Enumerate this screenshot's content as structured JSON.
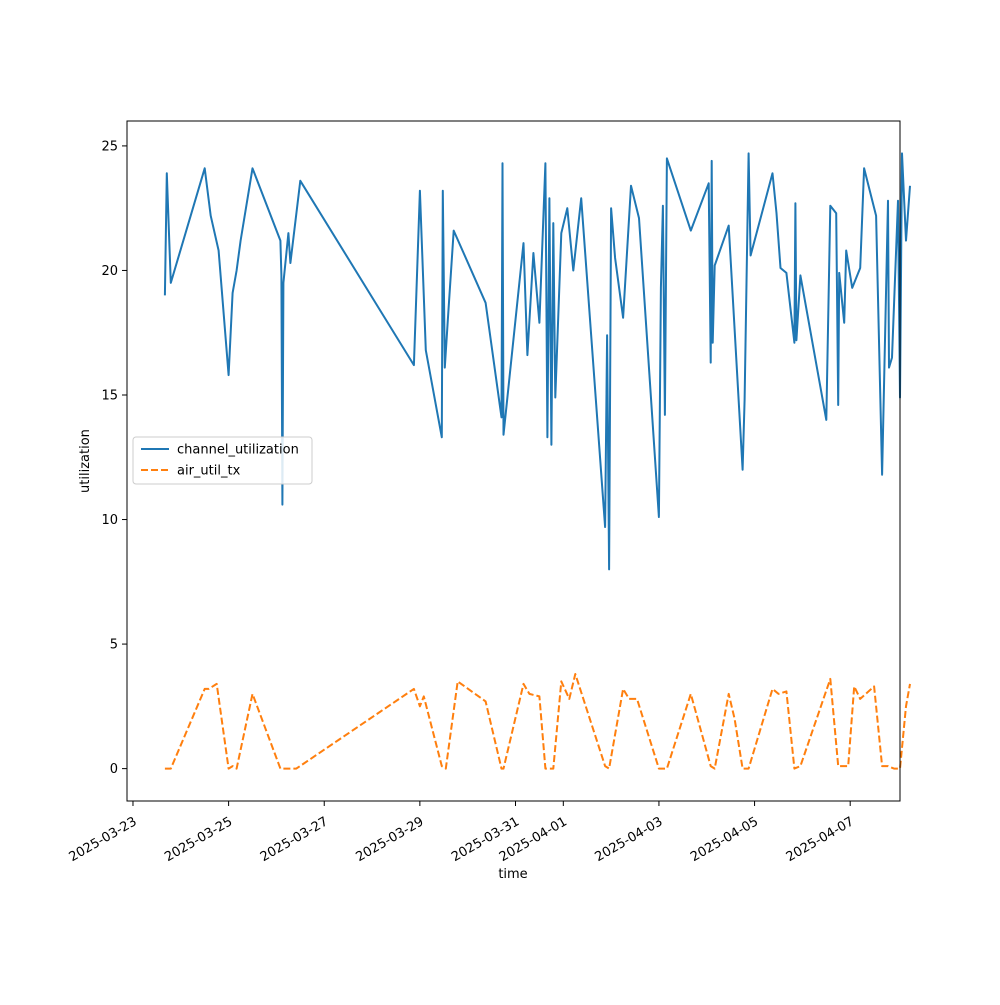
{
  "chart_data": {
    "type": "line",
    "title": "",
    "xlabel": "time",
    "ylabel": "utilization",
    "x_ticks": [
      "2025-03-23",
      "2025-03-25",
      "2025-03-27",
      "2025-03-29",
      "2025-03-31",
      "2025-04-01",
      "2025-04-03",
      "2025-04-05",
      "2025-04-07"
    ],
    "y_ticks": [
      "0",
      "5",
      "10",
      "15",
      "20",
      "25"
    ],
    "xlim": [
      "2025-03-22 21:00",
      "2025-04-08 01:00"
    ],
    "ylim": [
      -1.3,
      26.0
    ],
    "grid": false,
    "legend_position": "center-left",
    "series": [
      {
        "name": "channel_utilization",
        "color": "#1f77b4",
        "dash": "solid",
        "points": [
          [
            "2025-03-23 16:00",
            19.0
          ],
          [
            "2025-03-23 17:00",
            23.9
          ],
          [
            "2025-03-23 19:00",
            19.5
          ],
          [
            "2025-03-24 12:00",
            24.1
          ],
          [
            "2025-03-24 15:00",
            22.2
          ],
          [
            "2025-03-24 19:00",
            20.8
          ],
          [
            "2025-03-25 00:00",
            15.8
          ],
          [
            "2025-03-25 02:00",
            19.1
          ],
          [
            "2025-03-25 04:00",
            20.0
          ],
          [
            "2025-03-25 06:00",
            21.2
          ],
          [
            "2025-03-25 12:00",
            24.1
          ],
          [
            "2025-03-26 02:00",
            21.2
          ],
          [
            "2025-03-26 02:30",
            19.8
          ],
          [
            "2025-03-26 03:00",
            10.6
          ],
          [
            "2025-03-26 03:30",
            19.5
          ],
          [
            "2025-03-26 06:00",
            21.5
          ],
          [
            "2025-03-26 07:00",
            20.3
          ],
          [
            "2025-03-26 12:00",
            23.6
          ],
          [
            "2025-03-28 21:00",
            16.2
          ],
          [
            "2025-03-29 00:00",
            23.2
          ],
          [
            "2025-03-29 03:00",
            16.8
          ],
          [
            "2025-03-29 11:00",
            13.3
          ],
          [
            "2025-03-29 11:30",
            23.2
          ],
          [
            "2025-03-29 12:30",
            16.1
          ],
          [
            "2025-03-29 14:00",
            18.0
          ],
          [
            "2025-03-29 17:00",
            21.6
          ],
          [
            "2025-03-30 09:00",
            18.7
          ],
          [
            "2025-03-30 17:00",
            14.1
          ],
          [
            "2025-03-30 17:30",
            24.3
          ],
          [
            "2025-03-30 18:00",
            13.4
          ],
          [
            "2025-03-31 04:00",
            21.1
          ],
          [
            "2025-03-31 06:00",
            16.6
          ],
          [
            "2025-03-31 09:00",
            20.7
          ],
          [
            "2025-03-31 12:00",
            17.9
          ],
          [
            "2025-03-31 15:00",
            24.3
          ],
          [
            "2025-03-31 16:00",
            13.3
          ],
          [
            "2025-03-31 17:00",
            22.9
          ],
          [
            "2025-03-31 18:00",
            13.0
          ],
          [
            "2025-03-31 19:00",
            21.9
          ],
          [
            "2025-03-31 20:00",
            14.9
          ],
          [
            "2025-03-31 23:00",
            21.5
          ],
          [
            "2025-04-01 02:00",
            22.5
          ],
          [
            "2025-04-01 05:00",
            20.0
          ],
          [
            "2025-04-01 09:00",
            22.9
          ],
          [
            "2025-04-01 21:00",
            9.7
          ],
          [
            "2025-04-01 22:00",
            17.4
          ],
          [
            "2025-04-01 23:00",
            8.0
          ],
          [
            "2025-04-02 00:00",
            22.5
          ],
          [
            "2025-04-02 02:00",
            20.5
          ],
          [
            "2025-04-02 06:00",
            18.1
          ],
          [
            "2025-04-02 10:00",
            23.4
          ],
          [
            "2025-04-02 14:00",
            22.1
          ],
          [
            "2025-04-03 00:00",
            10.1
          ],
          [
            "2025-04-03 01:00",
            19.3
          ],
          [
            "2025-04-03 02:00",
            22.6
          ],
          [
            "2025-04-03 03:00",
            14.2
          ],
          [
            "2025-04-03 04:00",
            24.5
          ],
          [
            "2025-04-03 16:00",
            21.6
          ],
          [
            "2025-04-04 01:00",
            23.5
          ],
          [
            "2025-04-04 02:00",
            16.3
          ],
          [
            "2025-04-04 02:30",
            24.4
          ],
          [
            "2025-04-04 03:00",
            17.1
          ],
          [
            "2025-04-04 04:00",
            20.2
          ],
          [
            "2025-04-04 11:00",
            21.8
          ],
          [
            "2025-04-04 18:00",
            12.0
          ],
          [
            "2025-04-04 19:00",
            14.8
          ],
          [
            "2025-04-04 21:00",
            24.7
          ],
          [
            "2025-04-04 22:00",
            20.6
          ],
          [
            "2025-04-05 09:00",
            23.9
          ],
          [
            "2025-04-05 11:00",
            22.3
          ],
          [
            "2025-04-05 13:00",
            20.1
          ],
          [
            "2025-04-05 16:00",
            19.9
          ],
          [
            "2025-04-05 20:00",
            17.1
          ],
          [
            "2025-04-05 20:30",
            22.7
          ],
          [
            "2025-04-05 21:00",
            17.2
          ],
          [
            "2025-04-05 23:00",
            19.8
          ],
          [
            "2025-04-06 12:00",
            14.0
          ],
          [
            "2025-04-06 14:00",
            22.6
          ],
          [
            "2025-04-06 17:00",
            22.3
          ],
          [
            "2025-04-06 18:00",
            14.6
          ],
          [
            "2025-04-06 18:30",
            19.9
          ],
          [
            "2025-04-06 21:00",
            17.9
          ],
          [
            "2025-04-06 22:00",
            20.8
          ],
          [
            "2025-04-07 01:00",
            19.3
          ],
          [
            "2025-04-07 05:00",
            20.1
          ],
          [
            "2025-04-07 07:00",
            24.1
          ],
          [
            "2025-04-07 13:00",
            22.2
          ],
          [
            "2025-04-07 16:00",
            11.8
          ],
          [
            "2025-04-07 19:00",
            22.8
          ],
          [
            "2025-04-07 19:30",
            16.1
          ],
          [
            "2025-04-07 21:00",
            16.5
          ],
          [
            "2025-04-08 00:00",
            22.8
          ],
          [
            "2025-04-08 01:00",
            14.9
          ],
          [
            "2025-04-08 02:00",
            24.7
          ],
          [
            "2025-04-08 04:00",
            21.2
          ],
          [
            "2025-04-08 06:00",
            23.4
          ]
        ]
      },
      {
        "name": "air_util_tx",
        "color": "#ff7f0e",
        "dash": "dashed",
        "points": [
          [
            "2025-03-23 16:00",
            0.0
          ],
          [
            "2025-03-23 19:00",
            0.0
          ],
          [
            "2025-03-24 12:00",
            3.2
          ],
          [
            "2025-03-24 14:00",
            3.2
          ],
          [
            "2025-03-24 18:00",
            3.4
          ],
          [
            "2025-03-25 00:00",
            0.0
          ],
          [
            "2025-03-25 02:00",
            0.1
          ],
          [
            "2025-03-25 04:00",
            0.0
          ],
          [
            "2025-03-25 12:00",
            3.0
          ],
          [
            "2025-03-26 02:00",
            0.0
          ],
          [
            "2025-03-26 06:00",
            0.0
          ],
          [
            "2025-03-26 10:00",
            0.0
          ],
          [
            "2025-03-28 21:00",
            3.2
          ],
          [
            "2025-03-29 00:00",
            2.5
          ],
          [
            "2025-03-29 02:00",
            2.9
          ],
          [
            "2025-03-29 11:00",
            0.1
          ],
          [
            "2025-03-29 13:00",
            0.0
          ],
          [
            "2025-03-29 19:00",
            3.5
          ],
          [
            "2025-03-30 09:00",
            2.7
          ],
          [
            "2025-03-30 17:00",
            0.0
          ],
          [
            "2025-03-30 18:00",
            0.0
          ],
          [
            "2025-03-31 04:00",
            3.4
          ],
          [
            "2025-03-31 07:00",
            3.0
          ],
          [
            "2025-03-31 12:00",
            2.9
          ],
          [
            "2025-03-31 15:00",
            0.0
          ],
          [
            "2025-03-31 19:00",
            0.0
          ],
          [
            "2025-03-31 23:00",
            3.5
          ],
          [
            "2025-04-01 03:00",
            2.8
          ],
          [
            "2025-04-01 06:00",
            3.8
          ],
          [
            "2025-04-01 21:00",
            0.1
          ],
          [
            "2025-04-01 23:00",
            0.0
          ],
          [
            "2025-04-02 06:00",
            3.2
          ],
          [
            "2025-04-02 09:00",
            2.8
          ],
          [
            "2025-04-02 13:00",
            2.8
          ],
          [
            "2025-04-03 00:00",
            0.0
          ],
          [
            "2025-04-03 04:00",
            0.0
          ],
          [
            "2025-04-03 16:00",
            3.0
          ],
          [
            "2025-04-04 02:00",
            0.1
          ],
          [
            "2025-04-04 04:00",
            0.0
          ],
          [
            "2025-04-04 11:00",
            3.0
          ],
          [
            "2025-04-04 14:00",
            2.0
          ],
          [
            "2025-04-04 18:00",
            0.0
          ],
          [
            "2025-04-04 21:00",
            0.0
          ],
          [
            "2025-04-05 09:00",
            3.2
          ],
          [
            "2025-04-05 12:00",
            3.0
          ],
          [
            "2025-04-05 16:00",
            3.1
          ],
          [
            "2025-04-05 20:00",
            0.0
          ],
          [
            "2025-04-05 23:00",
            0.1
          ],
          [
            "2025-04-06 14:00",
            3.6
          ],
          [
            "2025-04-06 18:00",
            0.1
          ],
          [
            "2025-04-06 23:00",
            0.1
          ],
          [
            "2025-04-07 02:00",
            3.3
          ],
          [
            "2025-04-07 05:00",
            2.8
          ],
          [
            "2025-04-07 12:00",
            3.3
          ],
          [
            "2025-04-07 16:00",
            0.1
          ],
          [
            "2025-04-07 19:00",
            0.1
          ],
          [
            "2025-04-07 22:00",
            0.0
          ],
          [
            "2025-04-08 01:00",
            0.0
          ],
          [
            "2025-04-08 04:00",
            2.5
          ],
          [
            "2025-04-08 06:00",
            3.4
          ]
        ]
      }
    ]
  }
}
